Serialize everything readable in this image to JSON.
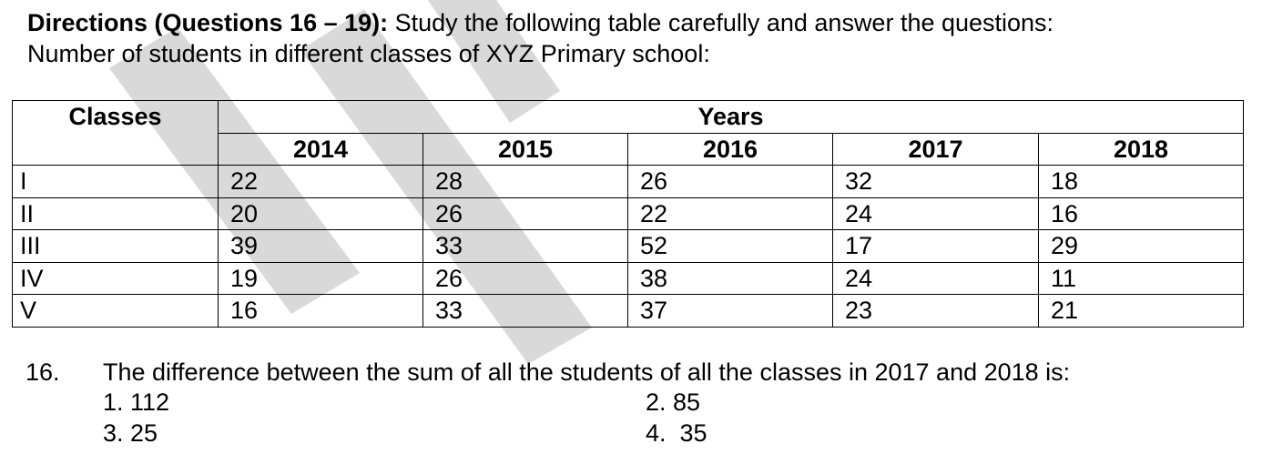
{
  "heading": {
    "bold": "Directions (Questions 16 – 19):",
    "rest": " Study the following table carefully and answer the questions:",
    "line2": "Number of students in different classes of XYZ Primary school:"
  },
  "table": {
    "classes_header": "Classes",
    "years_header": "Years",
    "years": [
      "2014",
      "2015",
      "2016",
      "2017",
      "2018"
    ],
    "rows": [
      {
        "class": "I",
        "values": [
          "22",
          "28",
          "26",
          "32",
          "18"
        ]
      },
      {
        "class": "II",
        "values": [
          "20",
          "26",
          "22",
          "24",
          "16"
        ]
      },
      {
        "class": "III",
        "values": [
          "39",
          "33",
          "52",
          "17",
          "29"
        ]
      },
      {
        "class": "IV",
        "values": [
          "19",
          "26",
          "38",
          "24",
          "11"
        ]
      },
      {
        "class": "V",
        "values": [
          "16",
          "33",
          "37",
          "23",
          "21"
        ]
      }
    ]
  },
  "question": {
    "number": "16.",
    "text": "The difference between the sum of all the students of all the classes in 2017 and 2018 is:",
    "options": [
      "1. 112",
      "2. 85",
      "3. 25",
      "4.  35"
    ]
  },
  "colors": {
    "watermark": "#d9d9d9"
  }
}
